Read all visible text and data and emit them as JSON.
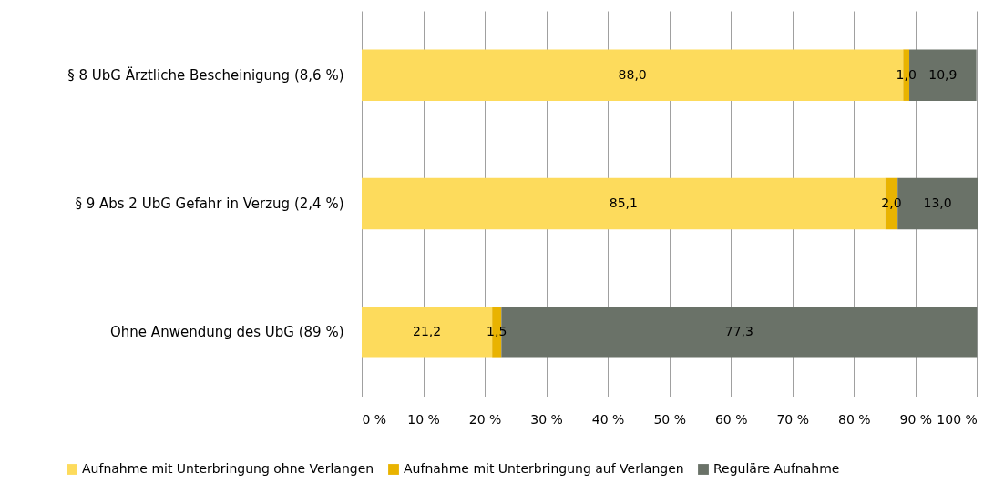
{
  "chart_data": {
    "type": "bar",
    "orientation": "horizontal",
    "stacked": true,
    "categories": [
      "§ 8 UbG Ärztliche Bescheinigung (8,6 %)",
      "§ 9 Abs 2 UbG Gefahr in Verzug (2,4 %)",
      "Ohne Anwendung des UbG (89 %)"
    ],
    "series": [
      {
        "name": "Aufnahme mit Unterbringung ohne Verlangen",
        "color": "#fddb5c",
        "values": [
          88.0,
          85.1,
          21.2
        ],
        "value_labels": [
          "88,0",
          "85,1",
          "21,2"
        ]
      },
      {
        "name": "Aufnahme mit Unterbringung auf Verlangen",
        "color": "#e9b300",
        "values": [
          1.0,
          2.0,
          1.5
        ],
        "value_labels": [
          "1,0",
          "2,0",
          "1,5"
        ]
      },
      {
        "name": "Reguläre Aufnahme",
        "color": "#6a7268",
        "values": [
          10.9,
          13.0,
          77.3
        ],
        "value_labels": [
          "10,9",
          "13,0",
          "77,3"
        ]
      }
    ],
    "xlim": [
      0,
      100.1
    ],
    "xticks": [
      {
        "value": 0,
        "label": "0 %"
      },
      {
        "value": 10,
        "label": "10 %"
      },
      {
        "value": 20,
        "label": "20 %"
      },
      {
        "value": 30,
        "label": "30 %"
      },
      {
        "value": 40,
        "label": "40 %"
      },
      {
        "value": 50,
        "label": "50 %"
      },
      {
        "value": 60,
        "label": "60 %"
      },
      {
        "value": 70,
        "label": "70 %"
      },
      {
        "value": 80,
        "label": "80 %"
      },
      {
        "value": 90,
        "label": "90 %"
      },
      {
        "value": 100,
        "label": "100 %"
      }
    ],
    "grid": "x",
    "legend": "bottom"
  }
}
